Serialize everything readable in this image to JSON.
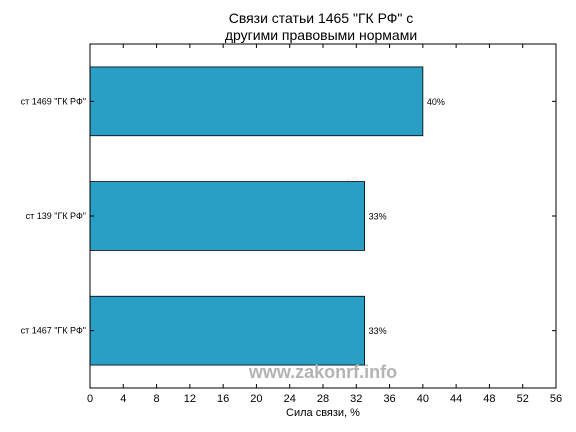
{
  "chart_data": {
    "type": "bar",
    "orientation": "horizontal",
    "title": [
      "Связи статьи 1465 \"ГК РФ\" с",
      "другими правовыми нормами"
    ],
    "xlabel": "Сила связи, %",
    "ylabel": "",
    "xlim": [
      0,
      56
    ],
    "xticks": [
      0,
      4,
      8,
      12,
      16,
      20,
      24,
      28,
      32,
      36,
      40,
      44,
      48,
      52,
      56
    ],
    "categories": [
      "ст 1469 \"ГК РФ\"",
      "ст 139 \"ГК РФ\"",
      "ст 1467 \"ГК РФ\""
    ],
    "values": [
      40,
      33,
      33
    ],
    "value_labels": [
      "40%",
      "33%",
      "33%"
    ],
    "bar_color": "#2a9fc6",
    "grid": false,
    "legend": "none"
  },
  "watermark": "www.zakonrf.info"
}
